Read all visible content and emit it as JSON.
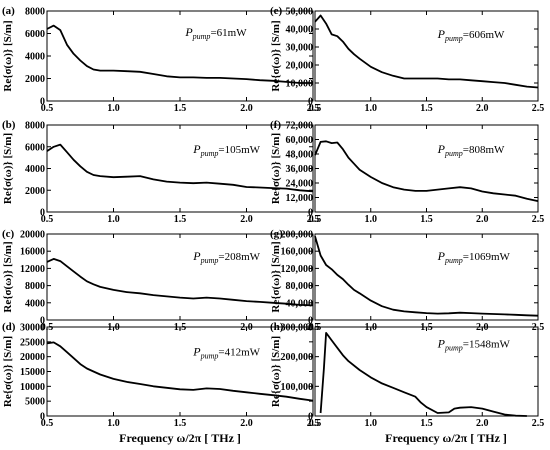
{
  "figure": {
    "xlabel_left": "Frequency ω/2π [ THz ]",
    "xlabel_right": "Frequency ω/2π [ THz ]"
  },
  "chart_data": [
    {
      "id": "a",
      "type": "line",
      "panel_label": "(a)",
      "ylabel": "Re{σ(ω)} [S/m]",
      "annotation": {
        "symbol": "P",
        "subscript": "pump",
        "value": "=61mW"
      },
      "xlim": [
        0.5,
        2.5
      ],
      "xticks": [
        0.5,
        1.0,
        1.5,
        2.0,
        2.5
      ],
      "xtick_labels": [
        "0.5",
        "1.0",
        "1.5",
        "2.0",
        "2.5"
      ],
      "ylim": [
        0,
        8000
      ],
      "yticks": [
        0,
        2000,
        4000,
        6000,
        8000
      ],
      "ytick_labels": [
        "0",
        "2000",
        "4000",
        "6000",
        "8000"
      ],
      "x": [
        0.5,
        0.55,
        0.6,
        0.65,
        0.7,
        0.75,
        0.8,
        0.85,
        0.9,
        1.0,
        1.1,
        1.2,
        1.3,
        1.4,
        1.5,
        1.6,
        1.7,
        1.8,
        1.9,
        2.0,
        2.1,
        2.2,
        2.3,
        2.4,
        2.5
      ],
      "y": [
        6400,
        6700,
        6300,
        5000,
        4200,
        3600,
        3100,
        2800,
        2700,
        2700,
        2650,
        2600,
        2400,
        2200,
        2100,
        2100,
        2050,
        2050,
        2000,
        1950,
        1850,
        1800,
        1700,
        1600,
        1600
      ]
    },
    {
      "id": "b",
      "type": "line",
      "panel_label": "(b)",
      "ylabel": "Re{σ(ω)} [S/m]",
      "annotation": {
        "symbol": "P",
        "subscript": "pump",
        "value": "=105mW"
      },
      "xlim": [
        0.5,
        2.5
      ],
      "xticks": [
        0.5,
        1.0,
        1.5,
        2.0,
        2.5
      ],
      "xtick_labels": [
        "0.5",
        "1.0",
        "1.5",
        "2.0",
        "2.5"
      ],
      "ylim": [
        0,
        8000
      ],
      "yticks": [
        0,
        2000,
        4000,
        6000,
        8000
      ],
      "ytick_labels": [
        "0",
        "2000",
        "4000",
        "6000",
        "8000"
      ],
      "x": [
        0.5,
        0.55,
        0.6,
        0.65,
        0.7,
        0.75,
        0.8,
        0.85,
        0.9,
        1.0,
        1.1,
        1.2,
        1.3,
        1.4,
        1.5,
        1.6,
        1.7,
        1.8,
        1.9,
        2.0,
        2.1,
        2.2,
        2.3,
        2.4,
        2.5
      ],
      "y": [
        5600,
        6000,
        6200,
        5500,
        4800,
        4200,
        3700,
        3400,
        3300,
        3200,
        3250,
        3300,
        3000,
        2800,
        2700,
        2650,
        2700,
        2600,
        2500,
        2300,
        2250,
        2200,
        2150,
        2000,
        1900
      ]
    },
    {
      "id": "c",
      "type": "line",
      "panel_label": "(c)",
      "ylabel": "Re{σ(ω)} [S/m]",
      "annotation": {
        "symbol": "P",
        "subscript": "pump",
        "value": "=208mW"
      },
      "xlim": [
        0.5,
        2.5
      ],
      "xticks": [
        0.5,
        1.0,
        1.5,
        2.0,
        2.5
      ],
      "xtick_labels": [
        "0.5",
        "1.0",
        "1.5",
        "2.0",
        "2.5"
      ],
      "ylim": [
        0,
        20000
      ],
      "yticks": [
        0,
        4000,
        8000,
        12000,
        16000,
        20000
      ],
      "ytick_labels": [
        "0",
        "4000",
        "8000",
        "12000",
        "16000",
        "20000"
      ],
      "x": [
        0.5,
        0.55,
        0.6,
        0.65,
        0.7,
        0.75,
        0.8,
        0.85,
        0.9,
        1.0,
        1.1,
        1.2,
        1.3,
        1.4,
        1.5,
        1.6,
        1.7,
        1.8,
        1.9,
        2.0,
        2.1,
        2.2,
        2.3,
        2.4,
        2.5
      ],
      "y": [
        13500,
        14200,
        13700,
        12500,
        11300,
        10100,
        9000,
        8300,
        7700,
        7000,
        6500,
        6200,
        5800,
        5500,
        5200,
        5000,
        5200,
        5000,
        4700,
        4400,
        4200,
        4000,
        3800,
        3500,
        3400
      ]
    },
    {
      "id": "d",
      "type": "line",
      "panel_label": "(d)",
      "ylabel": "Re{σ(ω)} [S/m]",
      "annotation": {
        "symbol": "P",
        "subscript": "pump",
        "value": "=412mW"
      },
      "xlim": [
        0.5,
        2.5
      ],
      "xticks": [
        0.5,
        1.0,
        1.5,
        2.0,
        2.5
      ],
      "xtick_labels": [
        "0.5",
        "1.0",
        "1.5",
        "2.0",
        "2.5"
      ],
      "ylim": [
        0,
        30000
      ],
      "yticks": [
        0,
        5000,
        10000,
        15000,
        20000,
        25000,
        30000
      ],
      "ytick_labels": [
        "0",
        "5000",
        "10000",
        "15000",
        "20000",
        "25000",
        "30000"
      ],
      "x": [
        0.5,
        0.55,
        0.6,
        0.65,
        0.7,
        0.75,
        0.8,
        0.85,
        0.9,
        1.0,
        1.1,
        1.2,
        1.3,
        1.4,
        1.5,
        1.6,
        1.7,
        1.8,
        1.9,
        2.0,
        2.1,
        2.2,
        2.3,
        2.4,
        2.5
      ],
      "y": [
        24500,
        24800,
        23500,
        21500,
        19500,
        17500,
        16000,
        15000,
        14000,
        12500,
        11500,
        10800,
        10000,
        9500,
        9000,
        8800,
        9300,
        9100,
        8500,
        8000,
        7500,
        7000,
        6500,
        5800,
        5200
      ]
    },
    {
      "id": "e",
      "type": "line",
      "panel_label": "(e)",
      "ylabel": "Re{σ(ω)} [S/m]",
      "annotation": {
        "symbol": "P",
        "subscript": "pump",
        "value": "=606mW"
      },
      "xlim": [
        0.5,
        2.5
      ],
      "xticks": [
        0.5,
        1.0,
        1.5,
        2.0,
        2.5
      ],
      "xtick_labels": [
        "0.5",
        "1.0",
        "1.5",
        "2.0",
        "2.5"
      ],
      "ylim": [
        0,
        50000
      ],
      "yticks": [
        0,
        10000,
        20000,
        30000,
        40000,
        50000
      ],
      "ytick_labels": [
        "0",
        "10,000",
        "20,000",
        "30,000",
        "40,000",
        "50,000"
      ],
      "x": [
        0.5,
        0.55,
        0.6,
        0.65,
        0.7,
        0.75,
        0.8,
        0.85,
        0.9,
        1.0,
        1.1,
        1.2,
        1.3,
        1.4,
        1.5,
        1.6,
        1.7,
        1.8,
        1.9,
        2.0,
        2.1,
        2.2,
        2.3,
        2.4,
        2.5
      ],
      "y": [
        44000,
        47500,
        43000,
        37000,
        36000,
        33000,
        29000,
        26000,
        23500,
        19000,
        16000,
        14000,
        12500,
        12500,
        12500,
        12500,
        12000,
        12000,
        11500,
        11000,
        10500,
        10000,
        9000,
        8000,
        7500
      ]
    },
    {
      "id": "f",
      "type": "line",
      "panel_label": "(f)",
      "ylabel": "Re{σ(ω)} [S/m]",
      "annotation": {
        "symbol": "P",
        "subscript": "pump",
        "value": "=808mW"
      },
      "xlim": [
        0.5,
        2.5
      ],
      "xticks": [
        0.5,
        1.0,
        1.5,
        2.0,
        2.5
      ],
      "xtick_labels": [
        "0.5",
        "1.0",
        "1.5",
        "2.0",
        "2.5"
      ],
      "ylim": [
        0,
        72000
      ],
      "yticks": [
        0,
        12000,
        24000,
        36000,
        48000,
        60000,
        72000
      ],
      "ytick_labels": [
        "0",
        "12,000",
        "24,000",
        "36,000",
        "48,000",
        "60,000",
        "72,000"
      ],
      "x": [
        0.5,
        0.55,
        0.6,
        0.65,
        0.7,
        0.75,
        0.8,
        0.85,
        0.9,
        1.0,
        1.1,
        1.2,
        1.3,
        1.4,
        1.5,
        1.6,
        1.7,
        1.8,
        1.9,
        2.0,
        2.1,
        2.2,
        2.3,
        2.4,
        2.5
      ],
      "y": [
        47000,
        58000,
        58500,
        57000,
        57500,
        52000,
        45000,
        40000,
        35000,
        29000,
        24000,
        20500,
        18500,
        17500,
        17500,
        18500,
        19500,
        20500,
        19500,
        17000,
        15500,
        14500,
        13500,
        11000,
        9000
      ]
    },
    {
      "id": "g",
      "type": "line",
      "panel_label": "(g)",
      "ylabel": "Re{σ(ω)} [S/m]",
      "annotation": {
        "symbol": "P",
        "subscript": "pump",
        "value": "=1069mW"
      },
      "xlim": [
        0.5,
        2.5
      ],
      "xticks": [
        0.5,
        1.0,
        1.5,
        2.0,
        2.5
      ],
      "xtick_labels": [
        "0.5",
        "1.0",
        "1.5",
        "2.0",
        "2.5"
      ],
      "ylim": [
        0,
        200000
      ],
      "yticks": [
        0,
        40000,
        80000,
        120000,
        160000,
        200000
      ],
      "ytick_labels": [
        "0",
        "40,000",
        "80,000",
        "120,000",
        "160,000",
        "200,000"
      ],
      "x": [
        0.5,
        0.55,
        0.6,
        0.65,
        0.7,
        0.75,
        0.8,
        0.85,
        0.9,
        1.0,
        1.1,
        1.2,
        1.3,
        1.4,
        1.5,
        1.6,
        1.7,
        1.8,
        1.9,
        2.0,
        2.1,
        2.2,
        2.3,
        2.4,
        2.5
      ],
      "y": [
        195000,
        150000,
        128000,
        118000,
        105000,
        95000,
        82000,
        70000,
        62000,
        45000,
        32000,
        24000,
        20000,
        18000,
        16000,
        15000,
        15500,
        17000,
        16000,
        15000,
        14000,
        13000,
        12000,
        11000,
        10000
      ]
    },
    {
      "id": "h",
      "type": "line",
      "panel_label": "(h)",
      "ylabel": "Re{σ(ω)} [S/m]",
      "annotation": {
        "symbol": "P",
        "subscript": "pump",
        "value": "=1548mW"
      },
      "xlim": [
        0.5,
        2.5
      ],
      "xticks": [
        0.5,
        1.0,
        1.5,
        2.0,
        2.5
      ],
      "xtick_labels": [
        "0.5",
        "1.0",
        "1.5",
        "2.0",
        "2.5"
      ],
      "ylim": [
        0,
        300000
      ],
      "yticks": [
        0,
        100000,
        200000,
        300000
      ],
      "ytick_labels": [
        "0",
        "100,000",
        "200,000",
        "300,000"
      ],
      "x": [
        0.55,
        0.58,
        0.6,
        0.62,
        0.65,
        0.7,
        0.75,
        0.8,
        0.9,
        1.0,
        1.1,
        1.2,
        1.3,
        1.4,
        1.45,
        1.5,
        1.6,
        1.7,
        1.75,
        1.8,
        1.9,
        2.0,
        2.1,
        2.2,
        2.3,
        2.4
      ],
      "y": [
        10000,
        160000,
        280000,
        270000,
        255000,
        230000,
        205000,
        185000,
        155000,
        130000,
        110000,
        95000,
        80000,
        65000,
        45000,
        30000,
        10000,
        12000,
        25000,
        28000,
        30000,
        25000,
        15000,
        5000,
        1000,
        0
      ]
    }
  ]
}
